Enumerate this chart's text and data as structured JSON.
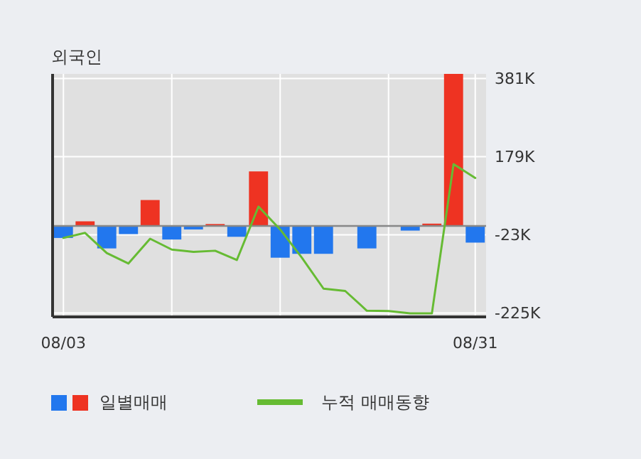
{
  "chart_data": {
    "type": "bar",
    "title": "외국인",
    "categories": [
      "08/03",
      null,
      null,
      null,
      null,
      null,
      null,
      null,
      null,
      null,
      null,
      null,
      null,
      null,
      null,
      null,
      null,
      null,
      null,
      "08/31"
    ],
    "series": [
      {
        "name": "일별매매",
        "colors": [
          "#2277ee",
          "#ee3322",
          "#2277ee",
          "#2277ee",
          "#ee3322",
          "#2277ee",
          "#2277ee",
          "#ee3322",
          "#2277ee",
          "#ee3322",
          "#2277ee",
          "#2277ee",
          "#2277ee",
          "#2277ee",
          "#2277ee",
          "#2277ee",
          "#2277ee",
          "#ee3322",
          "#ee3322",
          "#2277ee"
        ],
        "values": [
          -31000,
          12000,
          -58000,
          -21000,
          67000,
          -35000,
          -9000,
          5000,
          -28000,
          141000,
          -82000,
          -72000,
          -72000,
          0,
          -58000,
          0,
          -12000,
          6000,
          393000,
          -43000
        ]
      },
      {
        "name": "누적 매매동향",
        "type": "line",
        "color": "#66bb33",
        "values": [
          -31000,
          -18000,
          -70000,
          -97000,
          -33000,
          -61000,
          -67000,
          -64000,
          -88000,
          50000,
          -9000,
          -82000,
          -162000,
          -168000,
          -219000,
          -220000,
          -226000,
          -226000,
          160000,
          124000
        ]
      }
    ],
    "ylim": [
      -235000,
      393000
    ],
    "yticks": [
      {
        "value": 381000,
        "label": "381K"
      },
      {
        "value": 179000,
        "label": "179K"
      },
      {
        "value": -23000,
        "label": "-23K"
      },
      {
        "value": -225000,
        "label": "-225K"
      }
    ],
    "grid": true,
    "legend": "bottom"
  }
}
